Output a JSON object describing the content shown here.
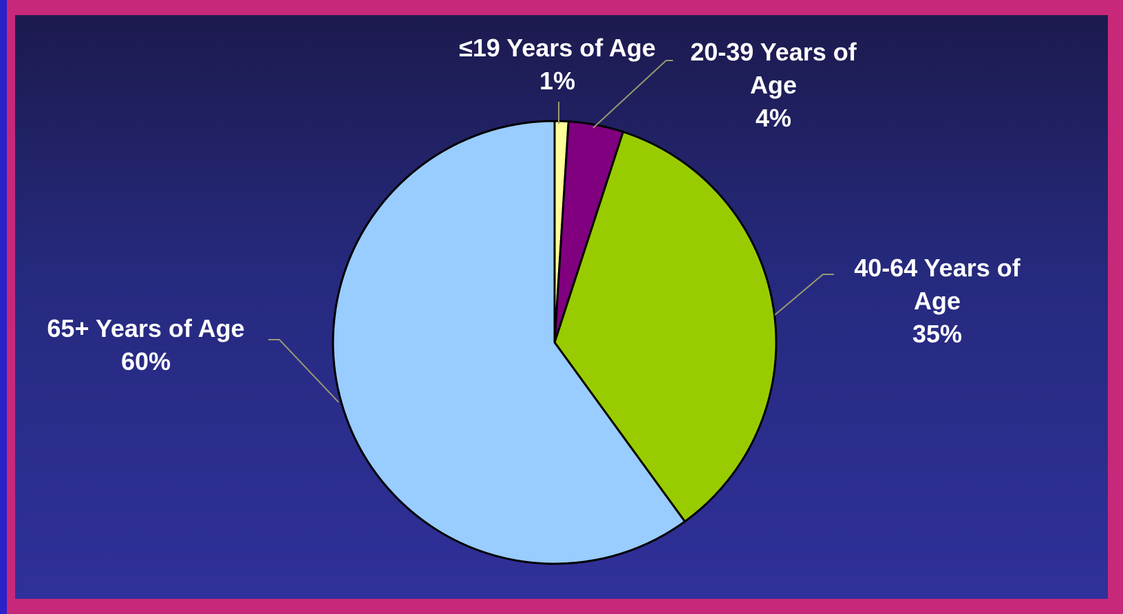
{
  "chart_data": {
    "type": "pie",
    "title": "",
    "start_angle_deg": 0,
    "direction": "clockwise",
    "slices": [
      {
        "label_lines": [
          "≤19 Years of Age",
          "1%"
        ],
        "value": 1,
        "color": "#ffff99"
      },
      {
        "label_lines": [
          "20-39 Years of",
          "Age",
          "4%"
        ],
        "value": 4,
        "color": "#800080"
      },
      {
        "label_lines": [
          "40-64 Years of",
          "Age",
          "35%"
        ],
        "value": 35,
        "color": "#99cc00"
      },
      {
        "label_lines": [
          "65+ Years of Age",
          "60%"
        ],
        "value": 60,
        "color": "#99ccff"
      }
    ]
  },
  "colors": {
    "border": "#c8287a",
    "slice_outline": "#000000",
    "leader_line": "#9a9a70",
    "label_text": "#ffffff"
  }
}
